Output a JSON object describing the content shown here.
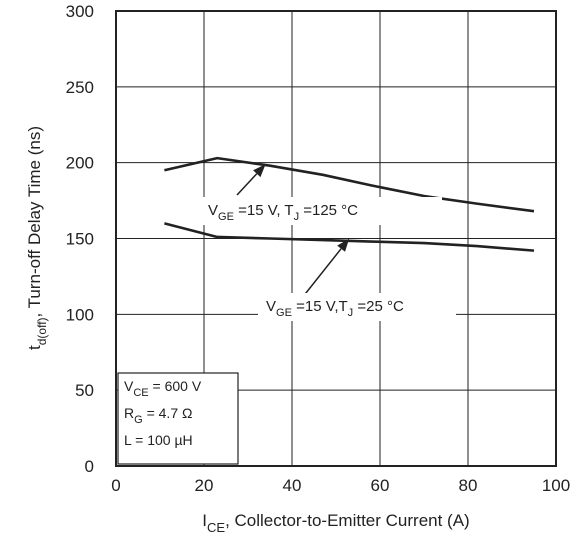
{
  "chart_data": {
    "type": "line",
    "xlim": [
      0,
      100
    ],
    "ylim": [
      0,
      300
    ],
    "x_ticks": [
      "0",
      "20",
      "40",
      "60",
      "80",
      "100"
    ],
    "y_ticks": [
      "0",
      "50",
      "100",
      "150",
      "200",
      "250",
      "300"
    ],
    "grid": true,
    "xlabel": {
      "main": "I",
      "sub": "CE",
      "rest": ", Collector-to-Emitter Current (A)"
    },
    "ylabel": {
      "main": "t",
      "sub": "d(off)",
      "rest": ", Turn-off Delay Time (ns)"
    },
    "series": [
      {
        "label": {
          "v": "V",
          "vsub": "GE",
          "mid": " =15 V, T",
          "tsub": "J",
          "end": " =125 °C"
        },
        "x": [
          11,
          23,
          35,
          47,
          58,
          70,
          82,
          95
        ],
        "y": [
          195,
          203,
          198,
          192,
          185,
          178,
          173,
          168
        ],
        "arrow_to": [
          34,
          199
        ]
      },
      {
        "label": {
          "v": "V",
          "vsub": "GE",
          "mid": " =15 V,T",
          "tsub": "J",
          "end": " =25 °C"
        },
        "x": [
          11,
          23,
          35,
          47,
          58,
          70,
          82,
          95
        ],
        "y": [
          160,
          151,
          150,
          149,
          148,
          147,
          145,
          142
        ],
        "arrow_to": [
          53,
          150
        ]
      }
    ],
    "conditions_box": {
      "line1": {
        "main": "V",
        "sub": "CE",
        "rest": " = 600 V"
      },
      "line2": {
        "main": "R",
        "sub": "G",
        "rest": " = 4.7 Ω"
      },
      "line3": "L = 100 µH"
    }
  }
}
